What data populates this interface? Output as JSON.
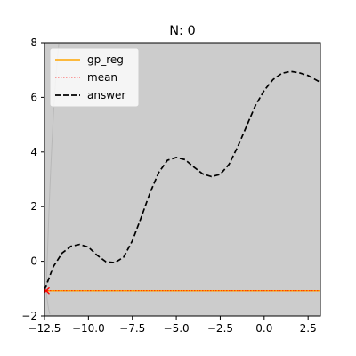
{
  "chart_data": {
    "type": "line",
    "title": "N: 0",
    "xlabel": "",
    "ylabel": "",
    "xlim": [
      -12.5,
      3.2
    ],
    "ylim": [
      -2,
      8
    ],
    "xticks": [
      -12.5,
      -10.0,
      -7.5,
      -5.0,
      -2.5,
      0.0,
      2.5
    ],
    "xtick_labels": [
      "−12.5",
      "−10.0",
      "−7.5",
      "−5.0",
      "−2.5",
      "0.0",
      "2.5"
    ],
    "yticks": [
      -2,
      0,
      2,
      4,
      6,
      8
    ],
    "ytick_labels": [
      "−2",
      "0",
      "2",
      "4",
      "6",
      "8"
    ],
    "grid": false,
    "legend": {
      "placement": "top-left",
      "entries": [
        {
          "label": "gp_reg",
          "color": "#ffa500",
          "style": "solid"
        },
        {
          "label": "mean",
          "color": "#ff0000",
          "style": "dotted"
        },
        {
          "label": "answer",
          "color": "#000000",
          "style": "dashed"
        }
      ]
    },
    "band": {
      "color": "#cccccc",
      "lower": -1000,
      "upper": 1000
    },
    "series": [
      {
        "name": "answer",
        "color": "#000000",
        "style": "dashed",
        "x": [
          -12.5,
          -12.0,
          -11.5,
          -11.0,
          -10.5,
          -10.0,
          -9.5,
          -9.0,
          -8.5,
          -8.0,
          -7.5,
          -7.0,
          -6.5,
          -6.0,
          -5.5,
          -5.0,
          -4.5,
          -4.0,
          -3.5,
          -3.0,
          -2.5,
          -2.0,
          -1.5,
          -1.0,
          -0.5,
          0.0,
          0.5,
          1.0,
          1.5,
          2.0,
          2.5,
          3.2
        ],
        "y": [
          -1.05,
          -0.2,
          0.3,
          0.55,
          0.62,
          0.52,
          0.22,
          -0.02,
          -0.05,
          0.15,
          0.75,
          1.6,
          2.5,
          3.25,
          3.7,
          3.8,
          3.72,
          3.45,
          3.2,
          3.1,
          3.18,
          3.55,
          4.2,
          4.95,
          5.7,
          6.25,
          6.65,
          6.88,
          6.95,
          6.9,
          6.8,
          6.55
        ]
      },
      {
        "name": "gp_reg",
        "color": "#ffa500",
        "style": "solid",
        "x": [
          -12.5,
          3.2
        ],
        "y": [
          -1.08,
          -1.08
        ]
      },
      {
        "name": "mean",
        "color": "#ff0000",
        "style": "dotted",
        "x": [
          -12.5,
          3.2
        ],
        "y": [
          -1.08,
          -1.08
        ]
      }
    ],
    "markers": [
      {
        "x": -12.4,
        "y": -1.08,
        "symbol": "x",
        "color": "#ff0000"
      }
    ]
  }
}
